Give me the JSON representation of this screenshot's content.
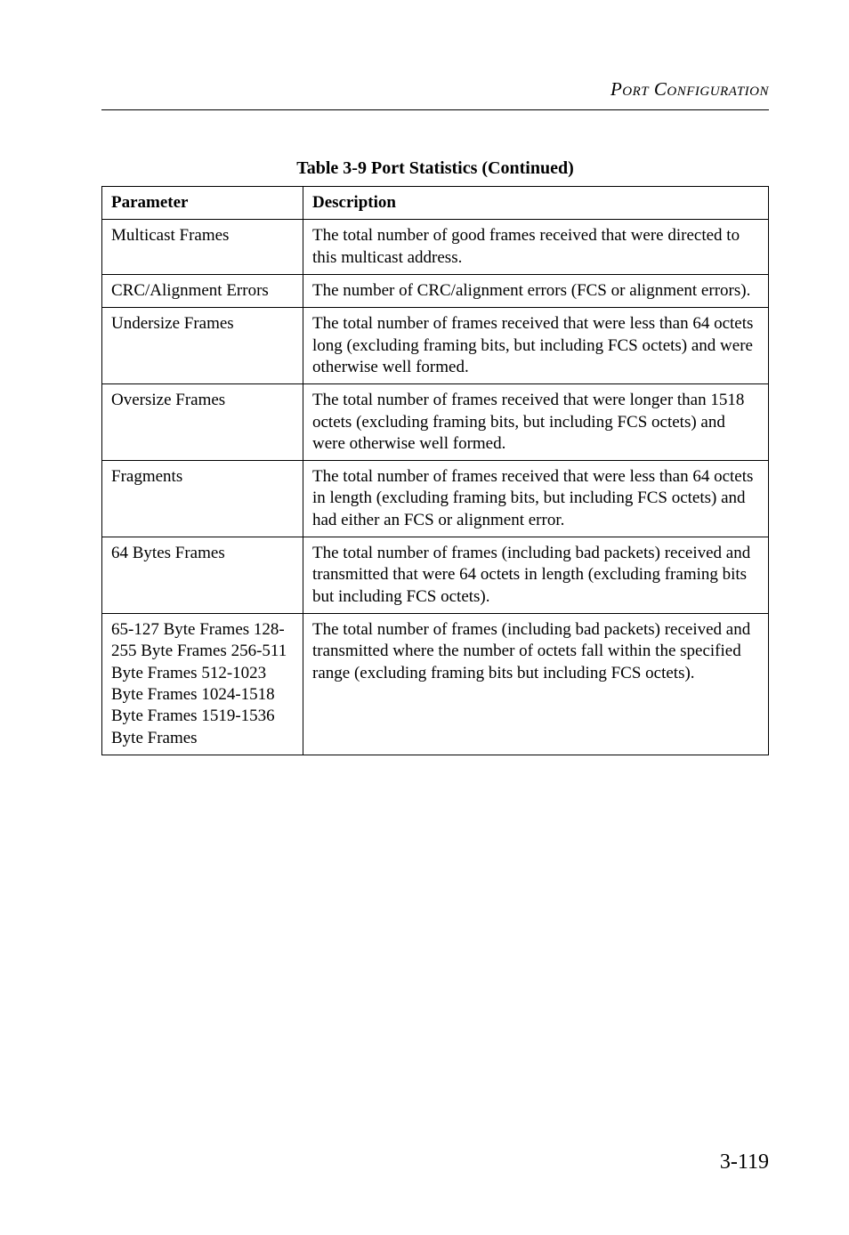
{
  "running_head": "Port Configuration",
  "caption": "Table 3-9  Port Statistics (Continued)",
  "columns": {
    "param": "Parameter",
    "desc": "Description"
  },
  "rows": [
    {
      "param": "Multicast Frames",
      "desc": "The total number of good frames received that were directed to this multicast address."
    },
    {
      "param": "CRC/Alignment Errors",
      "desc": "The number of CRC/alignment errors (FCS or alignment errors)."
    },
    {
      "param": "Undersize Frames",
      "desc": "The total number of frames received that were less than 64 octets long (excluding framing bits, but including FCS octets) and were otherwise well formed."
    },
    {
      "param": "Oversize Frames",
      "desc": "The total number of frames received that were longer than 1518 octets (excluding framing bits, but including FCS octets) and were otherwise well formed."
    },
    {
      "param": "Fragments",
      "desc": "The total number of frames received that were less than 64 octets in length (excluding framing bits, but including FCS octets) and had either an FCS or alignment error."
    },
    {
      "param": "64 Bytes Frames",
      "desc": "The total number of frames (including bad packets) received and transmitted that were 64 octets in length (excluding framing bits but including FCS octets)."
    },
    {
      "param": "65-127 Byte Frames 128-255 Byte Frames 256-511 Byte Frames 512-1023 Byte Frames 1024-1518 Byte Frames 1519-1536 Byte Frames",
      "desc": "The total number of frames (including bad packets) received and transmitted where the number of octets fall within the specified range (excluding framing bits but including FCS octets)."
    }
  ],
  "page_number": "3-119"
}
